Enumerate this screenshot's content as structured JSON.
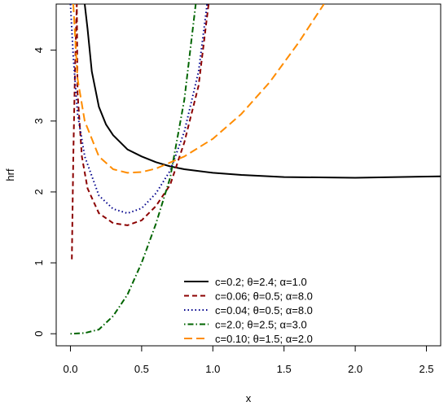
{
  "chart_data": {
    "type": "line",
    "xlabel": "x",
    "ylabel": "hrf",
    "xlim": [
      -0.1,
      2.6
    ],
    "ylim": [
      -0.17,
      4.65
    ],
    "x_ticks": [
      "0.0",
      "0.5",
      "1.0",
      "1.5",
      "2.0",
      "2.5"
    ],
    "y_ticks": [
      "0",
      "1",
      "2",
      "3",
      "4"
    ],
    "grid": false,
    "legend_position": "bottom-center",
    "series": [
      {
        "name": "c=0.2; θ=2.4; α=1.0",
        "color": "#000000",
        "dash": "solid",
        "points": [
          [
            0.1,
            4.65
          ],
          [
            0.12,
            4.3
          ],
          [
            0.15,
            3.7
          ],
          [
            0.2,
            3.2
          ],
          [
            0.25,
            2.95
          ],
          [
            0.3,
            2.8
          ],
          [
            0.4,
            2.6
          ],
          [
            0.5,
            2.5
          ],
          [
            0.6,
            2.42
          ],
          [
            0.7,
            2.36
          ],
          [
            0.8,
            2.32
          ],
          [
            1.0,
            2.27
          ],
          [
            1.2,
            2.24
          ],
          [
            1.5,
            2.21
          ],
          [
            2.0,
            2.2
          ],
          [
            2.6,
            2.22
          ]
        ]
      },
      {
        "name": "c=0.06; θ=0.5; α=8.0",
        "color": "#8b0000",
        "dash": "dashed",
        "points": [
          [
            0.01,
            1.05
          ],
          [
            0.02,
            2.5
          ],
          [
            0.03,
            3.5
          ],
          [
            0.04,
            4.35
          ],
          [
            0.045,
            4.65
          ],
          [
            0.05,
            3.4
          ],
          [
            0.08,
            2.5
          ],
          [
            0.12,
            2.05
          ],
          [
            0.2,
            1.7
          ],
          [
            0.3,
            1.56
          ],
          [
            0.4,
            1.53
          ],
          [
            0.5,
            1.6
          ],
          [
            0.6,
            1.8
          ],
          [
            0.7,
            2.1
          ],
          [
            0.8,
            2.7
          ],
          [
            0.9,
            3.5
          ],
          [
            0.97,
            4.65
          ]
        ]
      },
      {
        "name": "c=0.04; θ=0.5; α=8.0",
        "color": "#00008b",
        "dash": "dotted",
        "points": [
          [
            0.0,
            4.65
          ],
          [
            0.02,
            3.9
          ],
          [
            0.05,
            3.1
          ],
          [
            0.1,
            2.5
          ],
          [
            0.2,
            1.95
          ],
          [
            0.3,
            1.76
          ],
          [
            0.4,
            1.7
          ],
          [
            0.5,
            1.77
          ],
          [
            0.6,
            1.98
          ],
          [
            0.7,
            2.3
          ],
          [
            0.8,
            2.85
          ],
          [
            0.9,
            3.7
          ],
          [
            0.96,
            4.65
          ]
        ]
      },
      {
        "name": "c=2.0; θ=2.5; α=3.0",
        "color": "#006400",
        "dash": "dotdash",
        "points": [
          [
            0.0,
            0.0
          ],
          [
            0.1,
            0.01
          ],
          [
            0.2,
            0.06
          ],
          [
            0.3,
            0.25
          ],
          [
            0.4,
            0.55
          ],
          [
            0.5,
            1.0
          ],
          [
            0.6,
            1.55
          ],
          [
            0.7,
            2.2
          ],
          [
            0.8,
            3.3
          ],
          [
            0.88,
            4.65
          ]
        ]
      },
      {
        "name": "c=0.10; θ=1.5; α=2.0",
        "color": "#ff8c00",
        "dash": "longdash",
        "points": [
          [
            0.02,
            4.65
          ],
          [
            0.05,
            3.6
          ],
          [
            0.1,
            3.0
          ],
          [
            0.2,
            2.5
          ],
          [
            0.3,
            2.32
          ],
          [
            0.4,
            2.27
          ],
          [
            0.5,
            2.28
          ],
          [
            0.6,
            2.33
          ],
          [
            0.8,
            2.5
          ],
          [
            1.0,
            2.75
          ],
          [
            1.2,
            3.1
          ],
          [
            1.4,
            3.55
          ],
          [
            1.6,
            4.1
          ],
          [
            1.78,
            4.65
          ]
        ]
      }
    ]
  }
}
